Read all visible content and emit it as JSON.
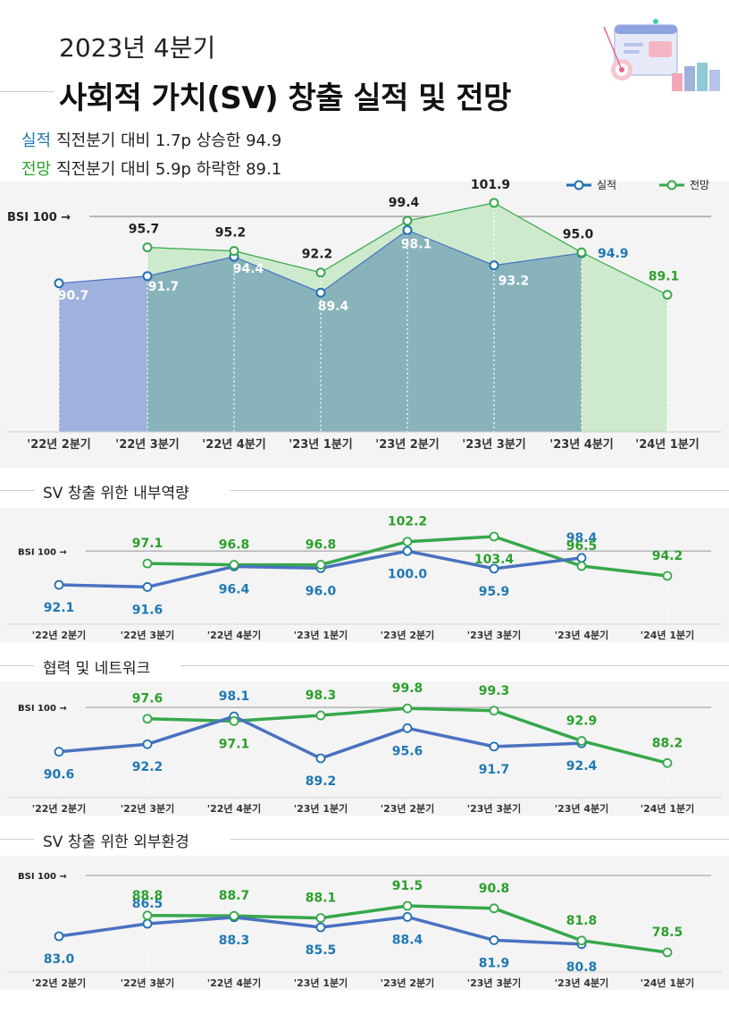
{
  "header": {
    "year_quarter": "2023년 4분기",
    "title": "사회적 가치(SV) 창출 실적 및 전망"
  },
  "summary": {
    "actual_label": "실적",
    "actual_text": "직전분기 대비 1.7p 상승한 94.9",
    "forecast_label": "전망",
    "forecast_text": "직전분기 대비 5.9p 하락한 89.1"
  },
  "legend": {
    "actual": "실적",
    "forecast": "전망"
  },
  "baseline_label": "BSI 100 →",
  "colors": {
    "actual_area": "#9fb1dd",
    "actual_line": "#4a72c0",
    "actual_label": "#1f78b4",
    "forecast_area": "#cdeacd",
    "forecast_line": "#36a84a",
    "forecast_label": "#2ca02c",
    "overlap_area": "#88b3bb",
    "panel_bg": "#f4f4f4",
    "reference_line": "#b5b5b5"
  },
  "chart_data": [
    {
      "type": "area",
      "title": "",
      "categories": [
        "'22년 2분기",
        "'22년 3분기",
        "'22년 4분기",
        "'23년 1분기",
        "'23년 2분기",
        "'23년 3분기",
        "'23년 4분기",
        "'24년 1분기"
      ],
      "series": [
        {
          "name": "실적",
          "values": [
            90.7,
            91.7,
            94.4,
            89.4,
            98.1,
            93.2,
            94.9,
            null
          ]
        },
        {
          "name": "전망",
          "values": [
            null,
            95.7,
            95.2,
            92.2,
            99.4,
            101.9,
            95.0,
            89.1
          ]
        }
      ],
      "reference_line": 100,
      "ylim": [
        70,
        104
      ],
      "legend_position": "top-right",
      "grid": false
    },
    {
      "type": "line",
      "title": "SV 창출 위한 내부역량",
      "categories": [
        "'22년 2분기",
        "'22년 3분기",
        "'22년 4분기",
        "'23년 1분기",
        "'23년 2분기",
        "'23년 3분기",
        "'23년 4분기",
        "'24년 1분기"
      ],
      "series": [
        {
          "name": "실적",
          "values": [
            92.1,
            91.6,
            96.4,
            96.0,
            100.0,
            95.9,
            98.4,
            null
          ]
        },
        {
          "name": "전망",
          "values": [
            null,
            97.1,
            96.8,
            96.8,
            102.2,
            103.4,
            96.5,
            94.2
          ]
        }
      ],
      "reference_line": 100,
      "ylim": [
        85,
        108
      ],
      "grid": false
    },
    {
      "type": "line",
      "title": "협력 및 네트워크",
      "categories": [
        "'22년 2분기",
        "'22년 3분기",
        "'22년 4분기",
        "'23년 1분기",
        "'23년 2분기",
        "'23년 3분기",
        "'23년 4분기",
        "'24년 1분기"
      ],
      "series": [
        {
          "name": "실적",
          "values": [
            90.6,
            92.2,
            98.1,
            89.2,
            95.6,
            91.7,
            92.4,
            null
          ]
        },
        {
          "name": "전망",
          "values": [
            null,
            97.6,
            97.1,
            98.3,
            99.8,
            99.3,
            92.9,
            88.2
          ]
        }
      ],
      "reference_line": 100,
      "ylim": [
        82,
        104
      ],
      "grid": false
    },
    {
      "type": "line",
      "title": "SV 창출 위한 외부환경",
      "categories": [
        "'22년 2분기",
        "'22년 3분기",
        "'22년 4분기",
        "'23년 1분기",
        "'23년 2분기",
        "'23년 3분기",
        "'23년 4분기",
        "'24년 1분기"
      ],
      "series": [
        {
          "name": "실적",
          "values": [
            83.0,
            86.5,
            88.3,
            85.5,
            88.4,
            81.9,
            80.8,
            null
          ]
        },
        {
          "name": "전망",
          "values": [
            null,
            88.8,
            88.7,
            88.1,
            91.5,
            90.8,
            81.8,
            78.5
          ]
        }
      ],
      "reference_line": 100,
      "ylim": [
        72,
        104
      ],
      "grid": false
    }
  ]
}
